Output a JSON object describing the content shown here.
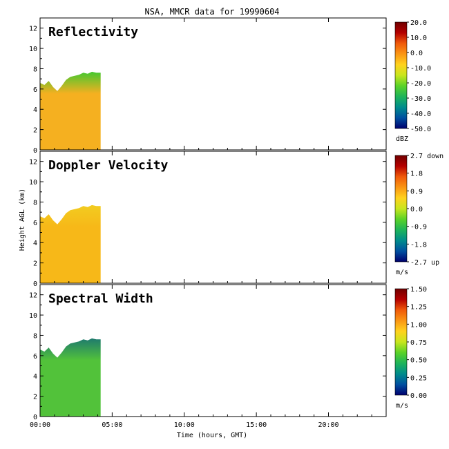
{
  "chart_data": {
    "type": "heatmap",
    "title": "NSA, MMCR data for 19990604",
    "xlabel": "Time (hours, GMT)",
    "ylabel": "Height AGL (km)",
    "xlim": [
      0,
      24
    ],
    "x_ticks": [
      0,
      5,
      10,
      15,
      20
    ],
    "x_tick_labels": [
      "00:00",
      "05:00",
      "10:00",
      "15:00",
      "20:00"
    ],
    "ylim": [
      0,
      13
    ],
    "y_ticks": [
      0,
      2,
      4,
      6,
      8,
      10,
      12
    ],
    "y_tick_labels": [
      "0",
      "2",
      "4",
      "6",
      "8",
      "10",
      "12"
    ],
    "data_extent_hours": [
      0,
      4.2
    ],
    "cloud_top_km": [
      [
        0.0,
        6.6
      ],
      [
        0.3,
        6.4
      ],
      [
        0.6,
        6.8
      ],
      [
        0.9,
        6.2
      ],
      [
        1.2,
        5.8
      ],
      [
        1.5,
        6.3
      ],
      [
        1.8,
        6.9
      ],
      [
        2.1,
        7.2
      ],
      [
        2.4,
        7.3
      ],
      [
        2.7,
        7.4
      ],
      [
        3.0,
        7.6
      ],
      [
        3.3,
        7.5
      ],
      [
        3.6,
        7.7
      ],
      [
        3.9,
        7.6
      ],
      [
        4.2,
        7.6
      ]
    ],
    "panels": [
      {
        "name": "Reflectivity",
        "units": "dBZ",
        "colorbar_labels": [
          "20.0",
          "10.0",
          "0.0",
          "-10.0",
          "-20.0",
          "-30.0",
          "-40.0",
          "-50.0"
        ],
        "dominant_color": "#f5b020",
        "top_color": "#44c830"
      },
      {
        "name": "Doppler Velocity",
        "units": "m/s",
        "colorbar_labels": [
          "2.7 down",
          "1.8",
          "0.9",
          "0.0",
          "-0.9",
          "-1.8",
          "-2.7 up"
        ],
        "dominant_color": "#f7b818",
        "top_color": "#f2cc20"
      },
      {
        "name": "Spectral Width",
        "units": "m/s",
        "colorbar_labels": [
          "1.50",
          "1.25",
          "1.00",
          "0.75",
          "0.50",
          "0.25",
          "0.00"
        ],
        "dominant_color": "#52c23a",
        "top_color": "#1e7a6e"
      }
    ],
    "colormap": [
      "#00006e",
      "#0050a0",
      "#008c8c",
      "#1eb45a",
      "#5ad228",
      "#c8e61e",
      "#ffd21e",
      "#fa9614",
      "#f05a0a",
      "#b40000",
      "#700000"
    ],
    "colors": {
      "background": "#ffffff",
      "axes": "#000000"
    }
  }
}
